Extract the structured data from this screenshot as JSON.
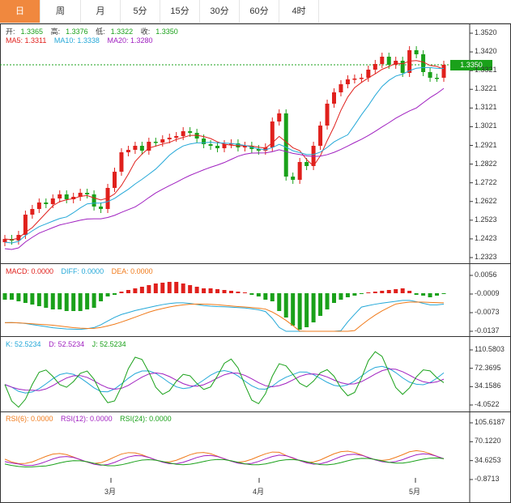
{
  "tabs": [
    "日",
    "周",
    "月",
    "5分",
    "15分",
    "30分",
    "60分",
    "4时"
  ],
  "active_tab": 0,
  "ohlc_legend": {
    "open_label": "开:",
    "open": "1.3365",
    "high_label": "高:",
    "high": "1.3376",
    "low_label": "低:",
    "low": "1.3322",
    "close_label": "收:",
    "close": "1.3350"
  },
  "ma_legend": {
    "ma5": "MA5: 1.3311",
    "ma10": "MA10: 1.3338",
    "ma20": "MA20: 1.3280"
  },
  "last_price": "1.3350",
  "price_axis": [
    "1.3520",
    "1.3420",
    "1.3321",
    "1.3221",
    "1.3121",
    "1.3021",
    "1.2921",
    "1.2822",
    "1.2722",
    "1.2622",
    "1.2523",
    "1.2423",
    "1.2323"
  ],
  "macd_legend": {
    "macd": "MACD: 0.0000",
    "diff": "DIFF: 0.0000",
    "dea": "DEA: 0.0000"
  },
  "macd_axis": [
    "0.0056",
    "-0.0009",
    "-0.0073",
    "-0.0137"
  ],
  "kdj_legend": {
    "k": "K: 52.5234",
    "d": "D: 52.5234",
    "j": "J: 52.5234"
  },
  "kdj_axis": [
    "110.5803",
    "72.3695",
    "34.1586",
    "-4.0522"
  ],
  "rsi_legend": {
    "rsi6": "RSI(6): 0.0000",
    "rsi12": "RSI(12): 0.0000",
    "rsi24": "RSI(24): 0.0000"
  },
  "rsi_axis": [
    "105.6187",
    "70.1220",
    "34.6253",
    "-0.8713"
  ],
  "time_axis": [
    "3月",
    "4月",
    "5月"
  ],
  "colors": {
    "up": "#e0201c",
    "down": "#1aa11a",
    "ma5": "#e0201c",
    "ma10": "#24a8d8",
    "ma20": "#a020c0",
    "dif": "#24a8d8",
    "dea": "#f07a1a",
    "k": "#24a8d8",
    "d": "#a020c0",
    "j": "#1aa11a",
    "rsi6": "#f07a1a",
    "rsi12": "#a020c0",
    "rsi24": "#1aa11a"
  }
}
